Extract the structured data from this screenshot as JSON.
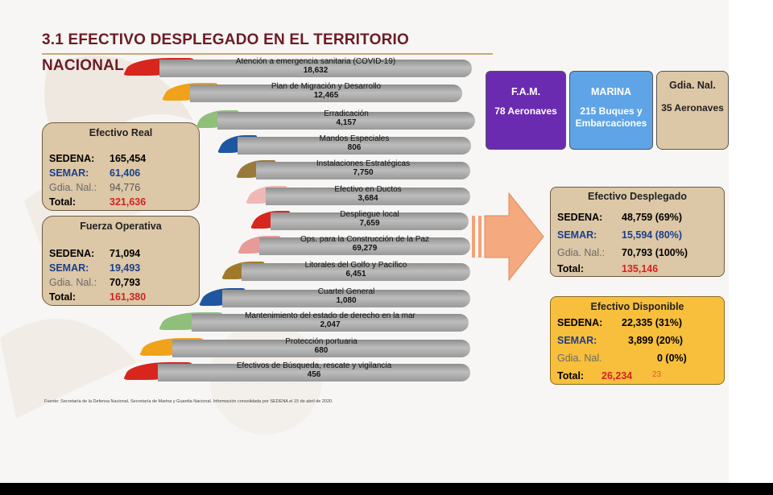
{
  "title": "3.1 EFECTIVO DESPLEGADO EN EL TERRITORIO NACIONAL",
  "efectivo_real": {
    "heading": "Efectivo Real",
    "rows": [
      {
        "label": "SEDENA:",
        "value": "165,454"
      },
      {
        "label": "SEMAR:",
        "value": "61,406"
      },
      {
        "label": "Gdia. Nal.:",
        "value": "94,776"
      },
      {
        "label": "Total:",
        "value": "321,636"
      }
    ]
  },
  "fuerza_operativa": {
    "heading": "Fuerza Operativa",
    "rows": [
      {
        "label": "SEDENA:",
        "value": "71,094"
      },
      {
        "label": "SEMAR:",
        "value": "19,493"
      },
      {
        "label": "Gdia. Nal.:",
        "value": "70,793"
      },
      {
        "label": "Total:",
        "value": "161,380"
      }
    ]
  },
  "operations": [
    {
      "name": "Atención a emergencia sanitaria (COVID-19)",
      "value": "18,632",
      "color": "#d7261e"
    },
    {
      "name": "Plan de Migración y Desarrollo",
      "value": "12,465",
      "color": "#f0a21a"
    },
    {
      "name": "Erradicación",
      "value": "4,157",
      "color": "#8fbf7a"
    },
    {
      "name": "Mandos Especiales",
      "value": "806",
      "color": "#1f56a0"
    },
    {
      "name": "Instalaciones Estratégicas",
      "value": "7,750",
      "color": "#9a7a3a"
    },
    {
      "name": "Efectivo en Ductos",
      "value": "3,684",
      "color": "#f0b8b4"
    },
    {
      "name": "Despliegue local",
      "value": "7,659",
      "color": "#d7261e"
    },
    {
      "name": "Ops. para la Construcción de la Paz",
      "value": "69,279",
      "color": "#e89a98"
    },
    {
      "name": "Litorales del Golfo y Pacífico",
      "value": "6,451",
      "color": "#a07a2a"
    },
    {
      "name": "Cuartel General",
      "value": "1,080",
      "color": "#1f56a0"
    },
    {
      "name": "Mantenimiento del estado de derecho en la mar",
      "value": "2,047",
      "color": "#8fbf7a"
    },
    {
      "name": "Protección portuaria",
      "value": "680",
      "color": "#f0a21a"
    },
    {
      "name": "Efectivos de Búsqueda, rescate y vigilancia",
      "value": "456",
      "color": "#d7261e"
    }
  ],
  "top_boxes": [
    {
      "heading": "F.A.M.",
      "body": "78 Aeronaves",
      "color": "#6a2bb0"
    },
    {
      "heading": "MARINA",
      "body": "215 Buques y Embarcaciones",
      "color": "#5ea4e6"
    },
    {
      "heading": "Gdia. Nal.",
      "body": "35 Aeronaves",
      "color": "#dcc7a6"
    }
  ],
  "efectivo_desplegado": {
    "heading": "Efectivo Desplegado",
    "rows": [
      {
        "label": "SEDENA:",
        "value": "48,759 (69%)"
      },
      {
        "label": "SEMAR:",
        "value": "15,594 (80%)"
      },
      {
        "label": "Gdia. Nal.:",
        "value": "70,793 (100%)"
      },
      {
        "label": "Total:",
        "value": "135,146"
      }
    ]
  },
  "efectivo_disponible": {
    "heading": "Efectivo Disponible",
    "rows": [
      {
        "label": "SEDENA:",
        "value": "22,335 (31%)"
      },
      {
        "label": "SEMAR:",
        "value": "3,899 (20%)"
      },
      {
        "label": "Gdia. Nal.",
        "value": "0  (0%)"
      },
      {
        "label": "Total:",
        "value": "26,234"
      }
    ],
    "extra": "23"
  },
  "footer": "Fuente: Secretaría de la Defensa Nacional, Secretaría de Marina y Guardia Nacional. Información consolidada por SEDENA  el 15 de abril de 2020."
}
